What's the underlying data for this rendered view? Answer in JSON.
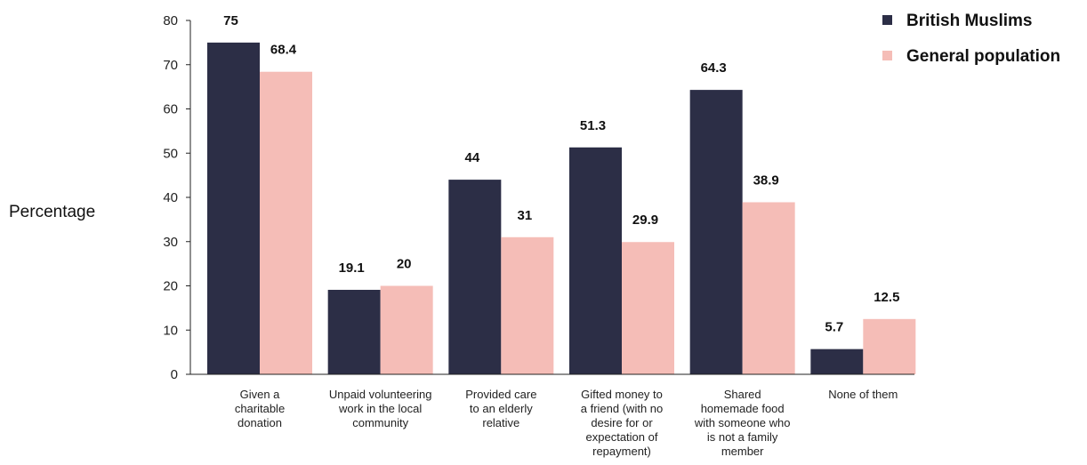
{
  "chart_data": {
    "type": "bar",
    "ylabel": "Percentage",
    "xlabel": "",
    "ylim": [
      0,
      80
    ],
    "yticks": [
      0,
      10,
      20,
      30,
      40,
      50,
      60,
      70,
      80
    ],
    "legend_position": "top-right",
    "grid": false,
    "categories": [
      [
        "Given a",
        "charitable",
        "donation"
      ],
      [
        "Unpaid volunteering",
        "work in the local",
        "community"
      ],
      [
        "Provided care",
        "to an elderly",
        "relative"
      ],
      [
        "Gifted money to",
        "a friend (with no",
        "desire for or",
        "expectation of",
        "repayment)"
      ],
      [
        "Shared",
        "homemade food",
        "with someone who",
        "is not a family",
        "member"
      ],
      [
        "None of them"
      ]
    ],
    "series": [
      {
        "name": "British Muslims",
        "color": "#2c2e46",
        "values": [
          75,
          19.1,
          44,
          51.3,
          64.3,
          5.7
        ]
      },
      {
        "name": "General population",
        "color": "#f5bdb7",
        "values": [
          68.4,
          20,
          31,
          29.9,
          38.9,
          12.5
        ]
      }
    ]
  }
}
